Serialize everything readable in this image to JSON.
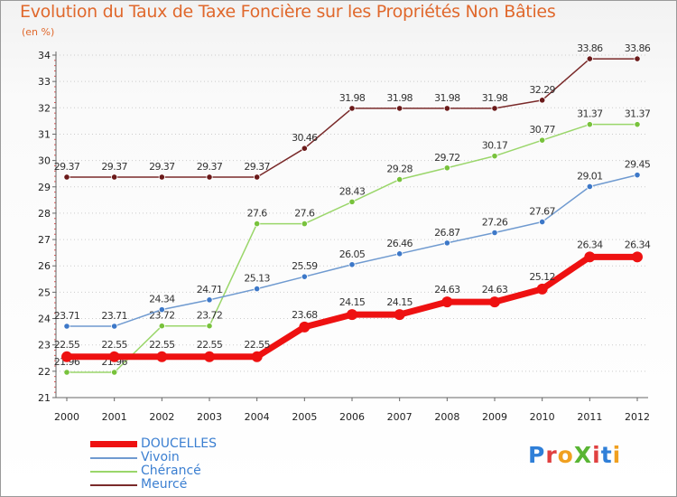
{
  "title": "Evolution du Taux de Taxe Foncière sur les Propriétés Non Bâties",
  "unit_label": "(en %)",
  "logo": {
    "text": "ProXiti",
    "letter_colors": [
      "#2f7fd8",
      "#e04040",
      "#f0a020",
      "#59b533",
      "#e04040",
      "#2f7fd8",
      "#f0a020"
    ]
  },
  "colors": {
    "title": "#e0682c",
    "axis": "#666666",
    "tick_label": "#222222",
    "grid": "#cccccc"
  },
  "chart_data": {
    "type": "line",
    "x": [
      "2000",
      "2001",
      "2002",
      "2003",
      "2004",
      "2005",
      "2006",
      "2007",
      "2008",
      "2009",
      "2010",
      "2011",
      "2012"
    ],
    "ylim": [
      21,
      34
    ],
    "yticks": [
      21,
      22,
      23,
      24,
      25,
      26,
      27,
      28,
      29,
      30,
      31,
      32,
      33,
      34
    ],
    "grid": "horizontal dotted",
    "legend_position": "bottom-left",
    "series": [
      {
        "name": "Meurcé",
        "color": "#7a2a2a",
        "marker_color": "#6b1a1a",
        "width": 1.5,
        "values": [
          29.37,
          29.37,
          29.37,
          29.37,
          29.37,
          30.46,
          31.98,
          31.98,
          31.98,
          31.98,
          32.29,
          33.86,
          33.86
        ],
        "labels": [
          "29.37",
          "29.37",
          "29.37",
          "29.37",
          "29.37",
          "30.46",
          "31.98",
          "31.98",
          "31.98",
          "31.98",
          "32.29",
          "33.86",
          "33.86"
        ]
      },
      {
        "name": "Chérancé",
        "color": "#9ad66a",
        "marker_color": "#78c23c",
        "width": 1.5,
        "values": [
          21.96,
          21.96,
          23.72,
          23.72,
          27.6,
          27.6,
          28.43,
          29.28,
          29.72,
          30.17,
          30.77,
          31.37,
          31.37
        ],
        "labels": [
          "21.96",
          "21.96",
          "23.72",
          "23.72",
          "27.6",
          "27.6",
          "28.43",
          "29.28",
          "29.72",
          "30.17",
          "30.77",
          "31.37",
          "31.37"
        ]
      },
      {
        "name": "Vivoin",
        "color": "#6f9ad0",
        "marker_color": "#3d78c8",
        "width": 1.5,
        "values": [
          23.71,
          23.71,
          24.34,
          24.71,
          25.13,
          25.59,
          26.05,
          26.46,
          26.87,
          27.26,
          27.67,
          29.01,
          29.45
        ],
        "labels": [
          "23.71",
          "23.71",
          "24.34",
          "24.71",
          "25.13",
          "25.59",
          "26.05",
          "26.46",
          "26.87",
          "27.26",
          "27.67",
          "29.01",
          "29.45"
        ]
      },
      {
        "name": "DOUCELLES",
        "color": "#ee1111",
        "marker_color": "#ee1111",
        "width": 7,
        "values": [
          22.55,
          22.55,
          22.55,
          22.55,
          22.55,
          23.68,
          24.15,
          24.15,
          24.63,
          24.63,
          25.12,
          26.34,
          26.34
        ],
        "labels": [
          "22.55",
          "22.55",
          "22.55",
          "22.55",
          "22.55",
          "23.68",
          "24.15",
          "24.15",
          "24.63",
          "24.63",
          "25.12",
          "26.34",
          "26.34"
        ]
      }
    ],
    "legend_order": [
      "DOUCELLES",
      "Vivoin",
      "Chérancé",
      "Meurcé"
    ]
  }
}
